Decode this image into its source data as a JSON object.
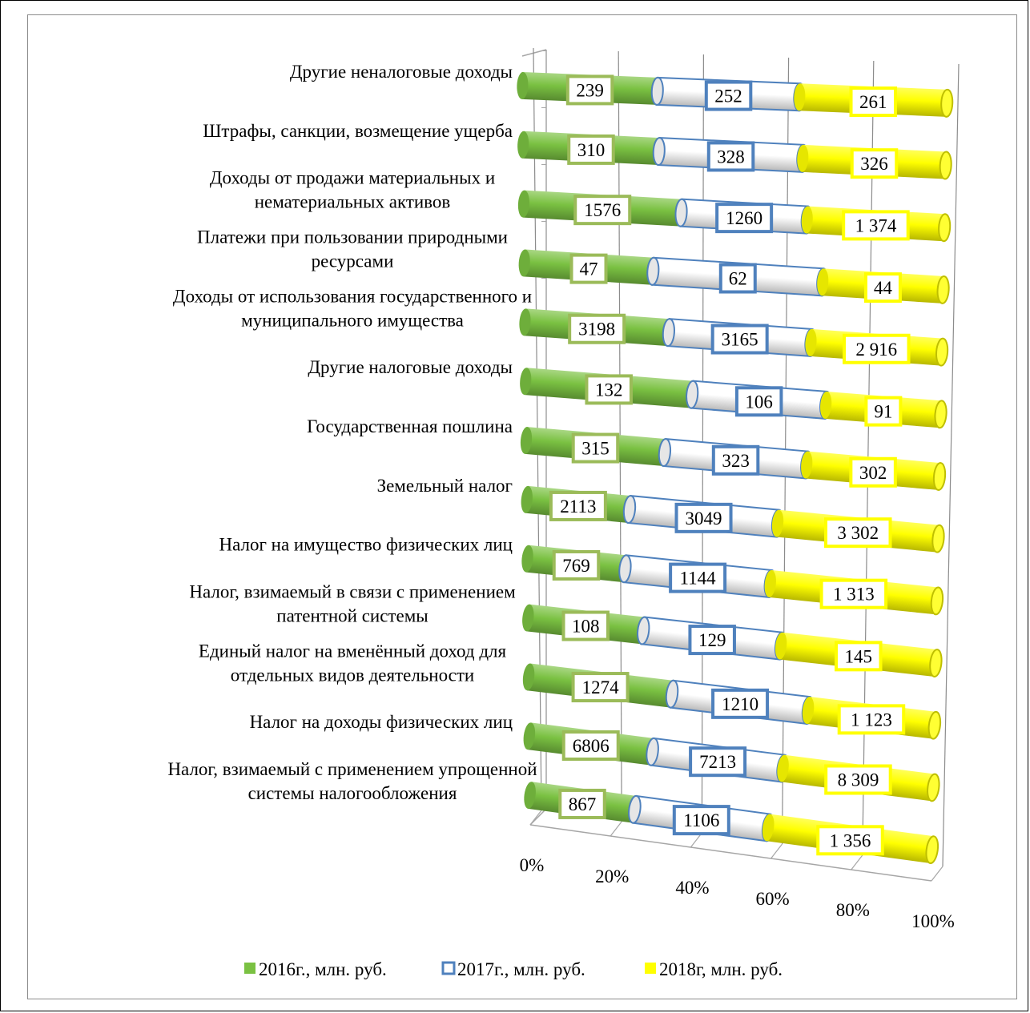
{
  "chart_data": {
    "type": "bar",
    "orientation": "horizontal",
    "stacked": "percent",
    "categories": [
      [
        "Другие неналоговые доходы"
      ],
      [
        "Штрафы, санкции, возмещение ущерба"
      ],
      [
        "Доходы от продажи материальных и",
        "нематериальных активов"
      ],
      [
        "Платежи при пользовании природными",
        "ресурсами"
      ],
      [
        "Доходы от использования государственного и",
        "муниципального имущества"
      ],
      [
        "Другие налоговые доходы"
      ],
      [
        "Государственная пошлина"
      ],
      [
        "Земельный налог"
      ],
      [
        "Налог на имущество физических лиц"
      ],
      [
        "Налог, взимаемый в связи с применением",
        "патентной системы"
      ],
      [
        "Единый налог на вменённый доход для",
        "отдельных видов деятельности"
      ],
      [
        "Налог на доходы физических лиц"
      ],
      [
        "Налог, взимаемый с применением упрощенной",
        "системы налогообложения"
      ]
    ],
    "series": [
      {
        "name": "2016г., млн. руб.",
        "color": "#7ac142",
        "label_border": "#9bbb59",
        "values": [
          239,
          310,
          1576,
          47,
          3198,
          132,
          315,
          2113,
          769,
          108,
          1274,
          6806,
          867
        ],
        "labels": [
          "239",
          "310",
          "1576",
          "47",
          "3198",
          "132",
          "315",
          "2113",
          "769",
          "108",
          "1274",
          "6806",
          "867"
        ]
      },
      {
        "name": "2017г., млн. руб.",
        "color": "#ffffff",
        "label_border": "#4f81bd",
        "values": [
          252,
          328,
          1260,
          62,
          3165,
          106,
          323,
          3049,
          1144,
          129,
          1210,
          7213,
          1106
        ],
        "labels": [
          "252",
          "328",
          "1260",
          "62",
          "3165",
          "106",
          "323",
          "3049",
          "1144",
          "129",
          "1210",
          "7213",
          "1106"
        ]
      },
      {
        "name": "2018г, млн. руб.",
        "color": "#ffff00",
        "label_border": "#ffff00",
        "values": [
          261,
          326,
          1374,
          44,
          2916,
          91,
          302,
          3302,
          1313,
          145,
          1123,
          8309,
          1356
        ],
        "labels": [
          "261",
          "326",
          "1 374",
          "44",
          "2 916",
          "91",
          "302",
          "3 302",
          "1 313",
          "145",
          "1 123",
          "8 309",
          "1 356"
        ]
      }
    ],
    "x_ticks": [
      "0%",
      "20%",
      "40%",
      "60%",
      "80%",
      "100%"
    ],
    "xlim": [
      0,
      100
    ],
    "grid": true,
    "legend": "bottom"
  }
}
